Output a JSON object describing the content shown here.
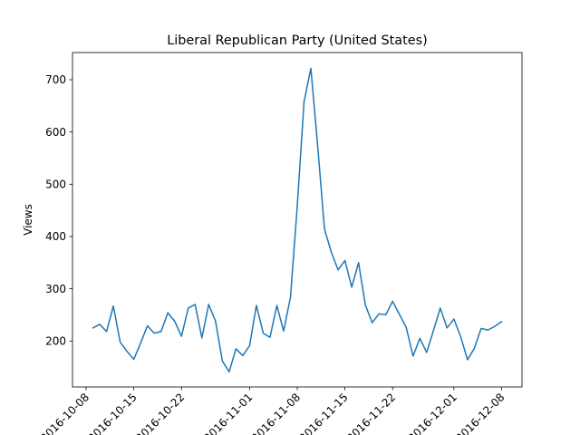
{
  "chart_data": {
    "type": "line",
    "title": "Liberal Republican Party (United States)",
    "xlabel": "",
    "ylabel": "Views",
    "x_ticks": [
      "2016-10-08",
      "2016-10-15",
      "2016-10-22",
      "2016-11-01",
      "2016-11-08",
      "2016-11-15",
      "2016-11-22",
      "2016-12-01",
      "2016-12-08"
    ],
    "y_ticks": [
      200,
      300,
      400,
      500,
      600,
      700
    ],
    "ylim": [
      112,
      752
    ],
    "xlim": [
      "2016-10-06",
      "2016-12-11"
    ],
    "grid": false,
    "legend": "none",
    "series": [
      {
        "color": "#1f77b4",
        "x": [
          "2016-10-09",
          "2016-10-10",
          "2016-10-11",
          "2016-10-12",
          "2016-10-13",
          "2016-10-14",
          "2016-10-15",
          "2016-10-16",
          "2016-10-17",
          "2016-10-18",
          "2016-10-19",
          "2016-10-20",
          "2016-10-21",
          "2016-10-22",
          "2016-10-23",
          "2016-10-24",
          "2016-10-25",
          "2016-10-26",
          "2016-10-27",
          "2016-10-28",
          "2016-10-29",
          "2016-10-30",
          "2016-10-31",
          "2016-11-01",
          "2016-11-02",
          "2016-11-03",
          "2016-11-04",
          "2016-11-05",
          "2016-11-06",
          "2016-11-07",
          "2016-11-08",
          "2016-11-09",
          "2016-11-10",
          "2016-11-11",
          "2016-11-12",
          "2016-11-13",
          "2016-11-14",
          "2016-11-15",
          "2016-11-16",
          "2016-11-17",
          "2016-11-18",
          "2016-11-19",
          "2016-11-20",
          "2016-11-21",
          "2016-11-22",
          "2016-11-23",
          "2016-11-24",
          "2016-11-25",
          "2016-11-26",
          "2016-11-27",
          "2016-11-28",
          "2016-11-29",
          "2016-11-30",
          "2016-12-01",
          "2016-12-02",
          "2016-12-03",
          "2016-12-04",
          "2016-12-05",
          "2016-12-06",
          "2016-12-07",
          "2016-12-08"
        ],
        "y": [
          225,
          232,
          218,
          267,
          198,
          180,
          165,
          196,
          229,
          215,
          218,
          254,
          238,
          209,
          263,
          270,
          206,
          270,
          238,
          162,
          141,
          185,
          172,
          191,
          268,
          215,
          207,
          268,
          219,
          283,
          458,
          658,
          722,
          573,
          414,
          370,
          336,
          354,
          303,
          350,
          269,
          235,
          252,
          250,
          276,
          251,
          226,
          171,
          205,
          178,
          220,
          263,
          225,
          242,
          208,
          164,
          186,
          224,
          221,
          228,
          237
        ]
      }
    ]
  }
}
